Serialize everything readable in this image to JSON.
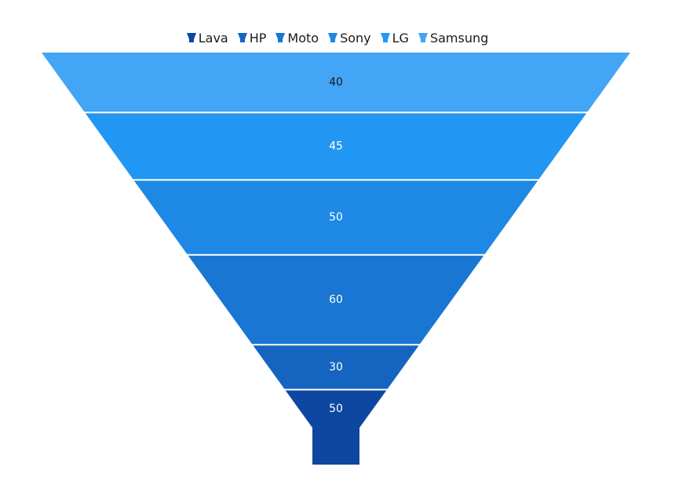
{
  "chart_data": {
    "type": "funnel",
    "legend_position": "top-center",
    "series": [
      {
        "name": "Samsung",
        "value": 40,
        "color": "#42A5F5",
        "label_color": "#1a1a1a"
      },
      {
        "name": "LG",
        "value": 45,
        "color": "#2196F3",
        "label_color": "#ffffff"
      },
      {
        "name": "Sony",
        "value": 50,
        "color": "#1E88E5",
        "label_color": "#ffffff"
      },
      {
        "name": "Moto",
        "value": 60,
        "color": "#1976D2",
        "label_color": "#ffffff"
      },
      {
        "name": "HP",
        "value": 30,
        "color": "#1565C0",
        "label_color": "#ffffff"
      },
      {
        "name": "Lava",
        "value": 50,
        "color": "#0D47A1",
        "label_color": "#ffffff"
      }
    ],
    "legend_order": [
      "Lava",
      "HP",
      "Moto",
      "Sony",
      "LG",
      "Samsung"
    ]
  }
}
